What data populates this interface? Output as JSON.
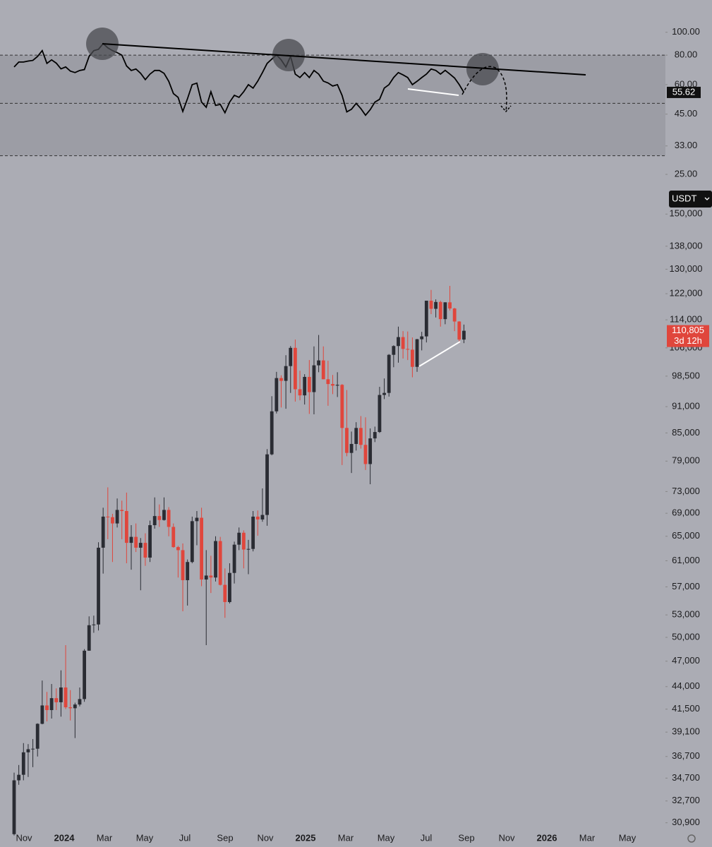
{
  "chart_data": [
    {
      "type": "line",
      "series": [
        {
          "color": "#000000",
          "values": [
            71.3,
            74.8,
            74.8,
            75.5,
            76,
            79,
            83.6,
            73.8,
            76.4,
            74,
            70,
            71.3,
            68.5,
            67.5,
            68.9,
            69.5,
            79,
            83.6,
            84.7,
            89.5,
            85.9,
            83.6,
            82,
            80,
            72,
            68.9,
            69.9,
            67,
            63,
            66.5,
            68.9,
            68.9,
            67,
            62,
            55,
            53,
            46.2,
            52.3,
            60,
            60.9,
            50.6,
            48.1,
            56,
            49,
            49.5,
            45.6,
            50.6,
            54.1,
            53,
            56,
            60,
            58,
            62.1,
            67.5,
            73.8,
            77,
            80.2,
            76.4,
            71.3,
            79.1,
            66.5,
            64.3,
            67.5,
            64.3,
            68.9,
            66.5,
            62.1,
            61,
            59.2,
            60,
            54,
            46,
            47.2,
            50,
            47.5,
            44.5,
            47,
            50.6,
            52,
            58,
            60,
            64.3,
            67.5,
            66,
            64.3,
            60,
            62,
            64.3,
            66.5,
            69.9,
            68.9,
            66.5,
            69,
            66.5,
            64,
            60,
            55.62
          ]
        }
      ],
      "ylim": [
        24.5,
        137
      ],
      "log_scale": true,
      "bands": [
        80,
        50,
        30
      ],
      "yticks": [
        {
          "value": 100,
          "label": "100.00"
        },
        {
          "value": 80,
          "label": "80.00"
        },
        {
          "value": 60,
          "label": "60.00"
        },
        {
          "value": 45,
          "label": "45.00"
        },
        {
          "value": 33,
          "label": "33.00"
        },
        {
          "value": 25,
          "label": "25.00"
        }
      ]
    },
    {
      "type": "candlestick",
      "open": [
        30000,
        34500,
        35000,
        37100,
        37400,
        37450,
        39950,
        41900,
        41400,
        42700,
        42250,
        43900,
        41700,
        41600,
        42000,
        42600,
        48300,
        51600,
        51700,
        63100,
        68400,
        68300,
        67200,
        69600,
        69400,
        63900,
        64900,
        63100,
        63900,
        61500,
        66900,
        68500,
        67800,
        69600,
        66600,
        63200,
        62700,
        58000,
        60800,
        67600,
        68200,
        58100,
        58700,
        58400,
        64200,
        57300,
        54800,
        59100,
        63600,
        65600,
        62800,
        62900,
        68400,
        67900,
        68700,
        80400,
        89900,
        98000,
        97300,
        101100,
        106000,
        95200,
        93700,
        98300,
        94500,
        101300,
        102600,
        97700,
        96500,
        96100,
        96300,
        86100,
        80700,
        82600,
        86100,
        82400,
        78400,
        83800,
        85200,
        93800,
        94300,
        104100,
        106500,
        109000,
        105700,
        105500,
        100900,
        108400,
        109200,
        119800,
        117300,
        119400,
        114200,
        119300,
        117400,
        113500,
        108300
      ],
      "high": [
        35200,
        35900,
        38000,
        37900,
        38400,
        40000,
        44700,
        43400,
        44300,
        43800,
        45900,
        49000,
        43600,
        42200,
        43900,
        48500,
        52800,
        52900,
        64000,
        70000,
        73800,
        68900,
        71700,
        71300,
        72800,
        66900,
        67200,
        64700,
        65500,
        67700,
        71900,
        70600,
        71900,
        70100,
        67200,
        63400,
        63800,
        61200,
        68400,
        69400,
        70000,
        62700,
        61800,
        65000,
        64900,
        59800,
        60600,
        64100,
        66500,
        66000,
        64400,
        69400,
        69500,
        73600,
        81500,
        93500,
        99600,
        98700,
        104000,
        106500,
        108300,
        99900,
        99000,
        102700,
        106400,
        109600,
        106400,
        102500,
        98800,
        99500,
        96500,
        95000,
        85300,
        87400,
        88800,
        88500,
        86000,
        86400,
        95800,
        97900,
        104300,
        106700,
        112000,
        110700,
        110600,
        108900,
        108500,
        110500,
        119800,
        123200,
        120200,
        119800,
        119300,
        124500,
        117600,
        113600,
        112600
      ],
      "low": [
        29900,
        34100,
        34500,
        34800,
        35700,
        36700,
        39900,
        40200,
        40500,
        41400,
        40700,
        41500,
        40300,
        38500,
        41800,
        42300,
        48300,
        50600,
        50900,
        59000,
        64500,
        60800,
        66500,
        64500,
        60600,
        59600,
        62400,
        56500,
        60200,
        60800,
        66300,
        66600,
        67700,
        65000,
        63100,
        58400,
        53500,
        54300,
        60600,
        63500,
        57100,
        49000,
        56100,
        57800,
        57200,
        52600,
        54600,
        57500,
        62700,
        59800,
        58900,
        62500,
        65100,
        67500,
        66800,
        80200,
        89400,
        90800,
        90500,
        94300,
        92200,
        92500,
        91500,
        89300,
        89200,
        99500,
        97700,
        91200,
        94000,
        93300,
        78200,
        80000,
        76600,
        81200,
        81600,
        77200,
        74400,
        83000,
        85000,
        92800,
        93400,
        100800,
        102000,
        103100,
        102700,
        98200,
        99600,
        105300,
        107500,
        115700,
        114700,
        112000,
        112700,
        116800,
        110700,
        107300,
        107300
      ],
      "close": [
        34500,
        35000,
        37100,
        37400,
        37450,
        39950,
        41900,
        41400,
        42700,
        42250,
        43900,
        41700,
        41600,
        42000,
        42600,
        48300,
        51600,
        51700,
        63100,
        68400,
        68300,
        67200,
        69600,
        69400,
        63900,
        64900,
        63100,
        63900,
        61500,
        66900,
        68500,
        67800,
        69600,
        66600,
        63200,
        62700,
        58000,
        60800,
        67600,
        68200,
        58100,
        58700,
        58400,
        64200,
        57300,
        54800,
        59100,
        63600,
        65600,
        62800,
        62900,
        68400,
        67900,
        68700,
        80400,
        89900,
        98000,
        97300,
        101100,
        106000,
        95200,
        93700,
        98300,
        94500,
        101300,
        102600,
        97700,
        96500,
        96100,
        96300,
        86100,
        80700,
        82600,
        86100,
        82400,
        78400,
        83800,
        85200,
        93800,
        94300,
        104100,
        106500,
        109000,
        105700,
        105500,
        100900,
        108400,
        109200,
        119800,
        117300,
        119400,
        114200,
        119300,
        117400,
        113500,
        108300,
        110805
      ],
      "last_label": "110,805",
      "countdown": "3d 12h",
      "currency": "USDT",
      "up_color": "#2a2c33",
      "down_color": "#e0463c",
      "ylim": [
        30100,
        153700
      ],
      "log_scale": true,
      "yticks": [
        {
          "value": 150000,
          "label": "150,000"
        },
        {
          "value": 138000,
          "label": "138,000"
        },
        {
          "value": 130000,
          "label": "130,000"
        },
        {
          "value": 122000,
          "label": "122,000"
        },
        {
          "value": 114000,
          "label": "114,000"
        },
        {
          "value": 106000,
          "label": "106,000"
        },
        {
          "value": 98500,
          "label": "98,500"
        },
        {
          "value": 91000,
          "label": "91,000"
        },
        {
          "value": 85000,
          "label": "85,000"
        },
        {
          "value": 79000,
          "label": "79,000"
        },
        {
          "value": 73000,
          "label": "73,000"
        },
        {
          "value": 69000,
          "label": "69,000"
        },
        {
          "value": 65000,
          "label": "65,000"
        },
        {
          "value": 61000,
          "label": "61,000"
        },
        {
          "value": 57000,
          "label": "57,000"
        },
        {
          "value": 53000,
          "label": "53,000"
        },
        {
          "value": 50000,
          "label": "50,000"
        },
        {
          "value": 47000,
          "label": "47,000"
        },
        {
          "value": 44000,
          "label": "44,000"
        },
        {
          "value": 41500,
          "label": "41,500"
        },
        {
          "value": 39100,
          "label": "39,100"
        },
        {
          "value": 36700,
          "label": "36,700"
        },
        {
          "value": 34700,
          "label": "34,700"
        },
        {
          "value": 32700,
          "label": "32,700"
        },
        {
          "value": 30900,
          "label": "30,900"
        }
      ],
      "xticks": [
        "Nov",
        "2024",
        "Mar",
        "May",
        "Jul",
        "Sep",
        "Nov",
        "2025",
        "Mar",
        "May",
        "Jul",
        "Sep",
        "Nov",
        "2026",
        "Mar",
        "May"
      ]
    }
  ]
}
